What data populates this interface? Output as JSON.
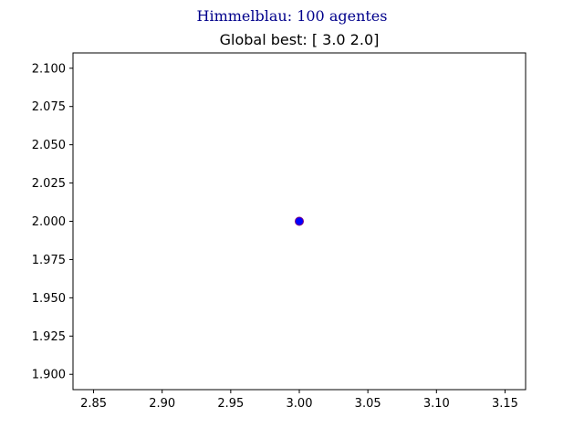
{
  "figure": {
    "suptitle": "Himmelblau: 100 agentes",
    "suptitle_color": "#00008b"
  },
  "chart_data": {
    "type": "scatter",
    "title": "Global best: [ 3.0 2.0]",
    "xlabel": "",
    "ylabel": "",
    "xlim": [
      2.835,
      3.165
    ],
    "ylim": [
      1.89,
      2.11
    ],
    "xticks": [
      "2.85",
      "2.90",
      "2.95",
      "3.00",
      "3.05",
      "3.10",
      "3.15"
    ],
    "xtick_values": [
      2.85,
      2.9,
      2.95,
      3.0,
      3.05,
      3.1,
      3.15
    ],
    "yticks": [
      "1.900",
      "1.925",
      "1.950",
      "1.975",
      "2.000",
      "2.025",
      "2.050",
      "2.075",
      "2.100"
    ],
    "ytick_values": [
      1.9,
      1.925,
      1.95,
      1.975,
      2.0,
      2.025,
      2.05,
      2.075,
      2.1
    ],
    "grid": false,
    "series": [
      {
        "points": [
          {
            "x": 3.0,
            "y": 2.0
          }
        ],
        "color": "#0000ff",
        "edge_color": "#800080"
      }
    ]
  }
}
